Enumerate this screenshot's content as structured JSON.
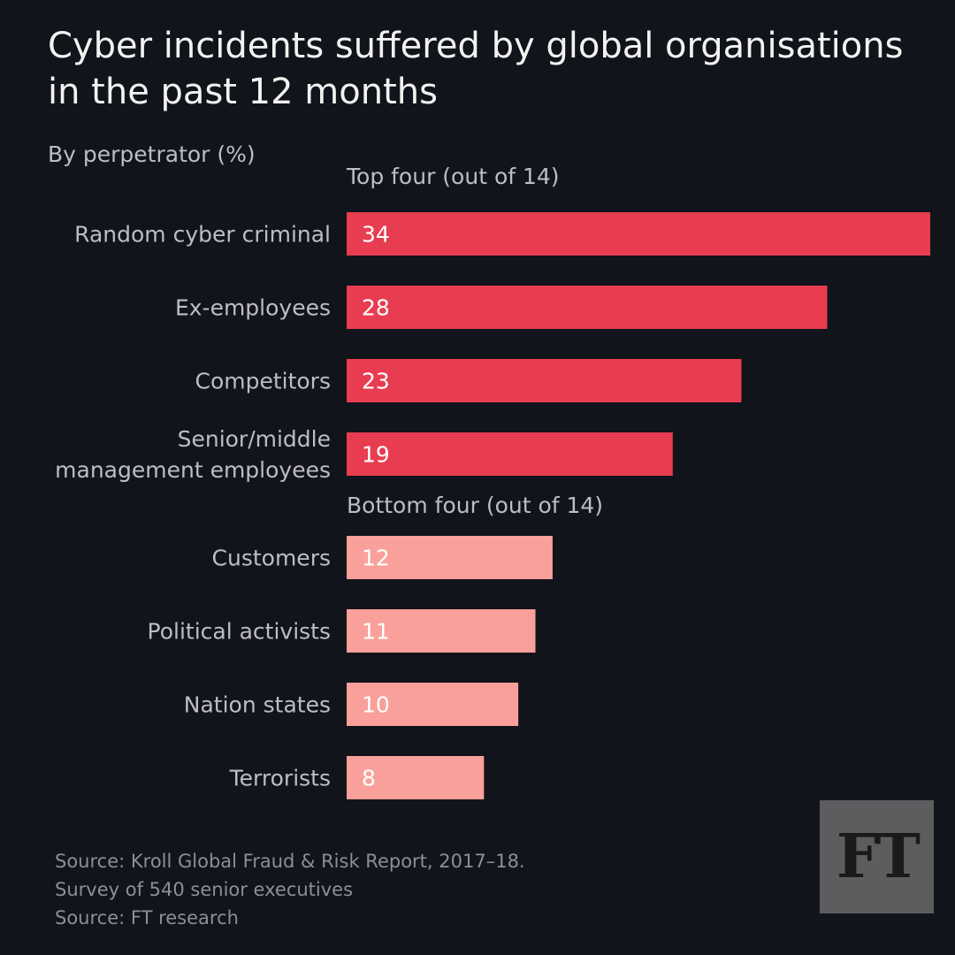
{
  "title": "Cyber incidents suffered by global organisations in the past 12 months",
  "subtitle": "By perpetrator (%)",
  "colors": {
    "background": "#12141b",
    "top": "#e83d50",
    "bottom": "#f9a09a",
    "label_text": "#bdbdc2",
    "value_text": "#ffffff"
  },
  "chart_data": {
    "type": "bar",
    "orientation": "horizontal",
    "groups": [
      {
        "label": "Top four (out of 14)",
        "color": "#e83d50",
        "categories": [
          "Random cyber criminal",
          "Ex-employees",
          "Competitors",
          "Senior/middle management employees"
        ],
        "values": [
          34,
          28,
          23,
          19
        ]
      },
      {
        "label": "Bottom four (out of 14)",
        "color": "#f9a09a",
        "categories": [
          "Customers",
          "Political activists",
          "Nation states",
          "Terrorists"
        ],
        "values": [
          12,
          11,
          10,
          8
        ]
      }
    ],
    "xlim": [
      0,
      34
    ],
    "grid": false
  },
  "footer": {
    "line1": "Source: Kroll Global Fraud & Risk Report, 2017–18.",
    "line2": "Survey of 540 senior executives",
    "line3": "Source: FT research"
  },
  "logo": {
    "text": "FT"
  }
}
